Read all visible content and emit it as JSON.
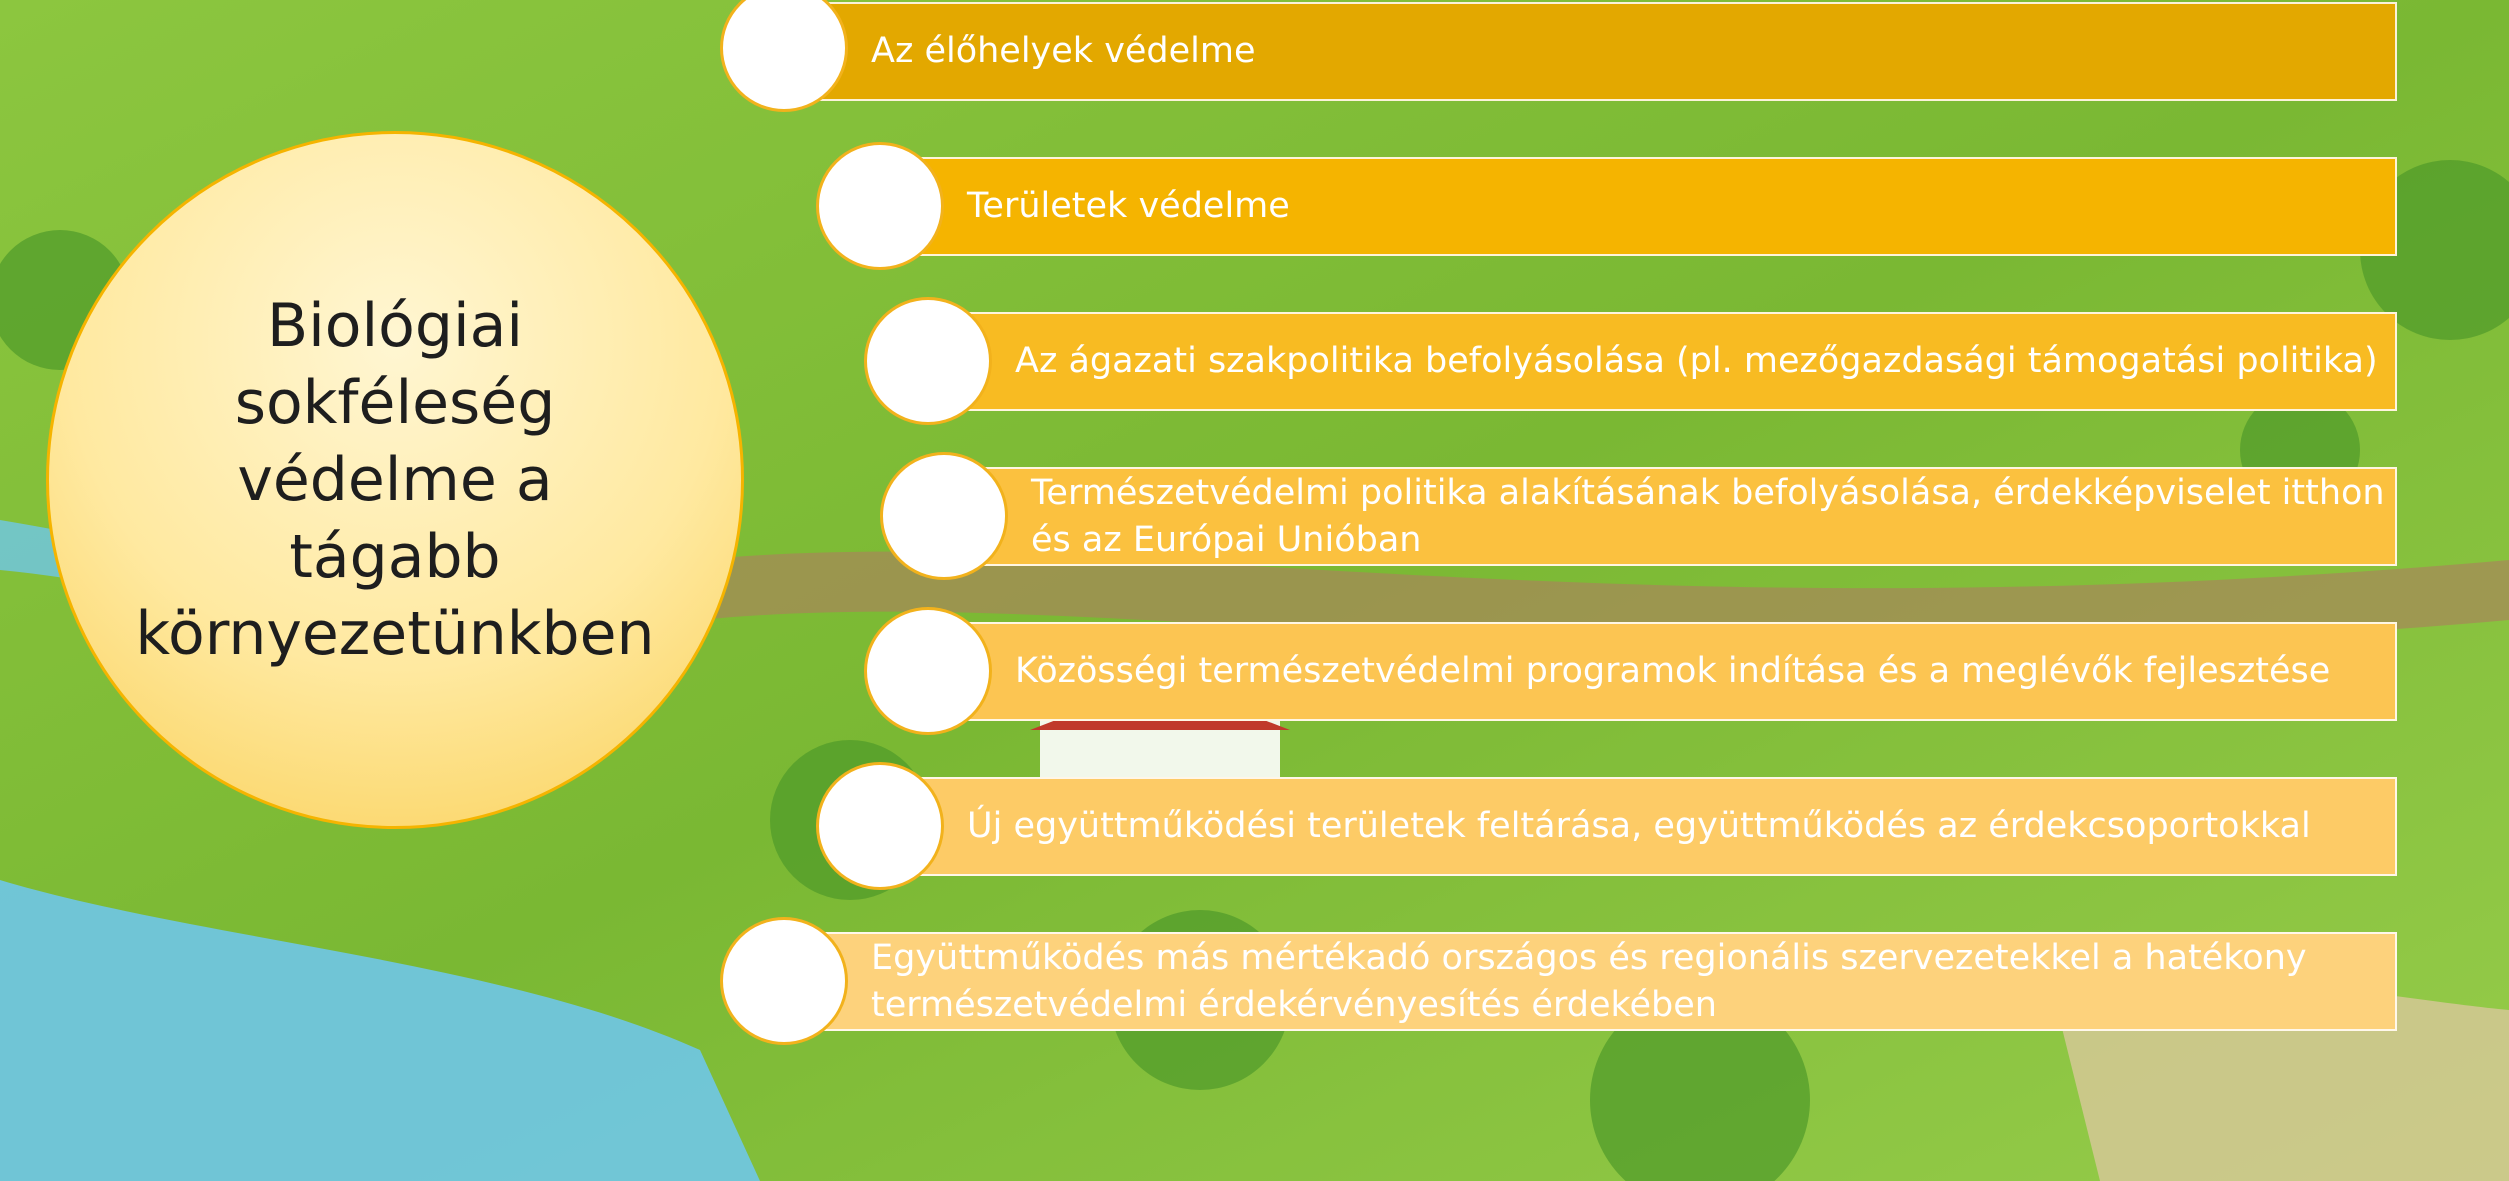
{
  "title_lines": [
    "Biológiai",
    "sokféleség",
    "védelme a",
    "tágabb",
    "környezetünkben"
  ],
  "items": [
    {
      "lines": [
        "Az élőhelyek védelme"
      ]
    },
    {
      "lines": [
        "Területek védelme"
      ]
    },
    {
      "lines": [
        "Az ágazati szakpolitika befolyásolása (pl. mezőgazdasági támogatási politika)"
      ]
    },
    {
      "lines": [
        "Természetvédelmi politika alakításának befolyásolása, érdekképviselet itthon",
        "és az Európai Unióban"
      ]
    },
    {
      "lines": [
        "Közösségi természetvédelmi programok indítása és a meglévők fejlesztése"
      ]
    },
    {
      "lines": [
        "Új együttműködési területek feltárása, együttműködés az érdekcsoportokkal"
      ]
    },
    {
      "lines": [
        "Együttműködés más mértékadó országos és regionális szervezetekkel a hatékony",
        "természetvédelmi érdekérvényesítés érdekében"
      ]
    }
  ]
}
